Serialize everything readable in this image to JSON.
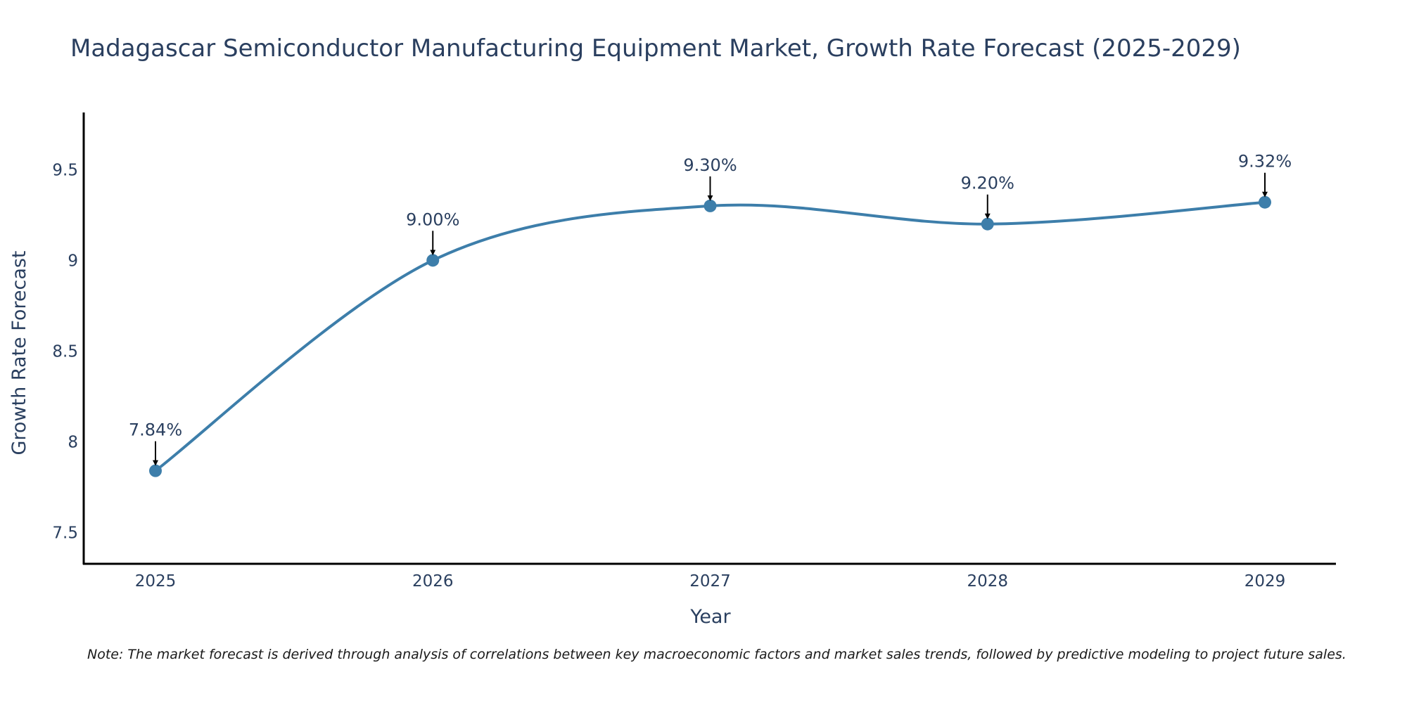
{
  "chart_data": {
    "type": "line",
    "title": "Madagascar Semiconductor Manufacturing Equipment Market, Growth Rate Forecast (2025-2029)",
    "xlabel": "Year",
    "ylabel": "Growth Rate Forecast",
    "categories": [
      "2025",
      "2026",
      "2027",
      "2028",
      "2029"
    ],
    "series": [
      {
        "name": "Growth Rate Forecast",
        "values": [
          7.84,
          9.0,
          9.3,
          9.2,
          9.32
        ],
        "color": "#3d7eaa"
      }
    ],
    "data_labels": [
      "7.84%",
      "9.00%",
      "9.30%",
      "9.20%",
      "9.32%"
    ],
    "yticks": [
      7.5,
      8,
      8.5,
      9,
      9.5
    ],
    "ytick_labels": [
      "7.5",
      "8",
      "8.5",
      "9",
      "9.5"
    ],
    "ylim": [
      7.335,
      9.815
    ],
    "line_shape": "spline",
    "grid": false,
    "legend": "none"
  },
  "note": "Note: The market forecast is derived through analysis of correlations between key macroeconomic factors and market sales trends, followed by predictive modeling to project future sales."
}
